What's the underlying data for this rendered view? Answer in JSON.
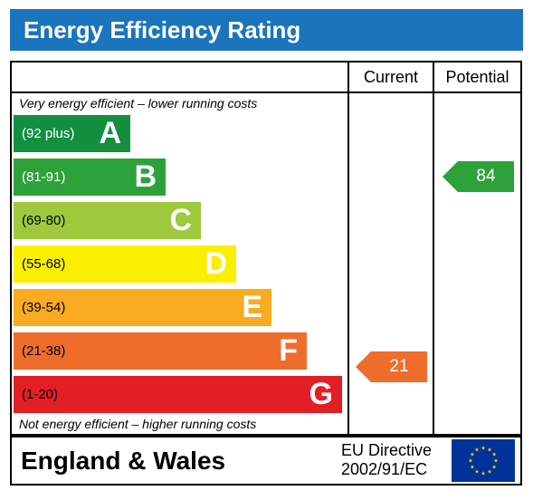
{
  "title": "Energy Efficiency Rating",
  "columns": {
    "current": "Current",
    "potential": "Potential"
  },
  "notes": {
    "top": "Very energy efficient – lower running costs",
    "bottom": "Not energy efficient – higher running costs"
  },
  "chart_data": {
    "type": "bar",
    "categories": [
      "A",
      "B",
      "C",
      "D",
      "E",
      "F",
      "G"
    ],
    "bands": [
      {
        "letter": "A",
        "range": "(92 plus)",
        "color": "#138f3f",
        "light_text": true
      },
      {
        "letter": "B",
        "range": "(81-91)",
        "color": "#2da23a",
        "light_text": true
      },
      {
        "letter": "C",
        "range": "(69-80)",
        "color": "#9ec93d",
        "light_text": false
      },
      {
        "letter": "D",
        "range": "(55-68)",
        "color": "#fbef00",
        "light_text": false
      },
      {
        "letter": "E",
        "range": "(39-54)",
        "color": "#f9ab21",
        "light_text": false
      },
      {
        "letter": "F",
        "range": "(21-38)",
        "color": "#ee6d2b",
        "light_text": false
      },
      {
        "letter": "G",
        "range": "(1-20)",
        "color": "#e31f26",
        "light_text": false
      }
    ],
    "current": {
      "value": "21",
      "band": "F",
      "color": "#ee6d2b"
    },
    "potential": {
      "value": "84",
      "band": "B",
      "color": "#2da23a"
    }
  },
  "footer": {
    "country": "England & Wales",
    "directive_line1": "EU Directive",
    "directive_line2": "2002/91/EC",
    "flag_icon": "eu-flag-icon"
  }
}
